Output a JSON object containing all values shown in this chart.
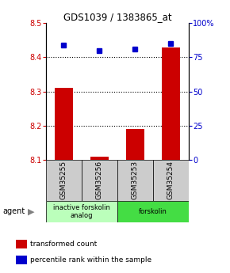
{
  "title": "GDS1039 / 1383865_at",
  "samples": [
    "GSM35255",
    "GSM35256",
    "GSM35253",
    "GSM35254"
  ],
  "transformed_counts": [
    8.31,
    8.11,
    8.19,
    8.43
  ],
  "percentile_ranks": [
    84,
    80,
    81,
    85
  ],
  "ylim_left": [
    8.1,
    8.5
  ],
  "ylim_right": [
    0,
    100
  ],
  "yticks_left": [
    8.1,
    8.2,
    8.3,
    8.4,
    8.5
  ],
  "yticks_right": [
    0,
    25,
    50,
    75,
    100
  ],
  "ytick_labels_right": [
    "0",
    "25",
    "50",
    "75",
    "100%"
  ],
  "bar_color": "#cc0000",
  "dot_color": "#0000cc",
  "groups": [
    {
      "label": "inactive forskolin\nanalog",
      "samples": [
        0,
        1
      ],
      "color": "#bbffbb"
    },
    {
      "label": "forskolin",
      "samples": [
        2,
        3
      ],
      "color": "#44dd44"
    }
  ],
  "agent_label": "agent",
  "legend_items": [
    {
      "color": "#cc0000",
      "label": "transformed count"
    },
    {
      "color": "#0000cc",
      "label": "percentile rank within the sample"
    }
  ],
  "sample_box_color": "#cccccc",
  "grid_dotted_ticks": [
    8.2,
    8.3,
    8.4
  ]
}
